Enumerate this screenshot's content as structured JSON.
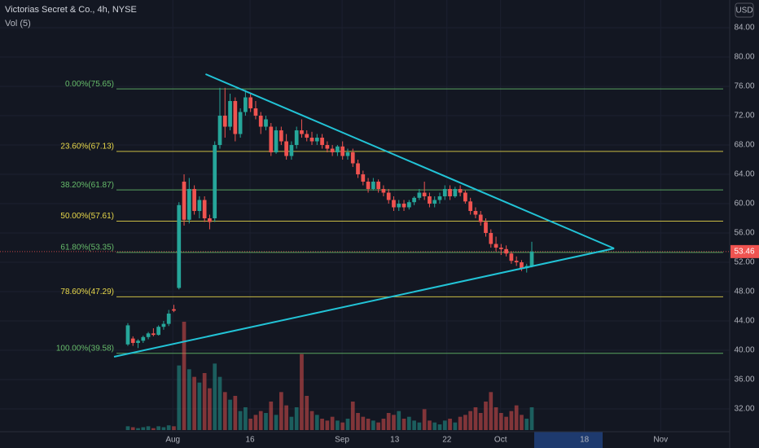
{
  "chart_data": {
    "type": "candlestick",
    "title": "Victorias Secret & Co., 4h, NYSE",
    "indicator": "Vol (5)",
    "currency": "USD",
    "last_price": 53.46,
    "up_color": "#26a69a",
    "down_color": "#ef5350",
    "ylim": [
      28.89,
      87.78
    ],
    "yticks": [
      {
        "value": 84,
        "label": "84.00"
      },
      {
        "value": 80,
        "label": "80.00"
      },
      {
        "value": 76,
        "label": "76.00"
      },
      {
        "value": 72,
        "label": "72.00"
      },
      {
        "value": 68,
        "label": "68.00"
      },
      {
        "value": 64,
        "label": "64.00"
      },
      {
        "value": 60,
        "label": "60.00"
      },
      {
        "value": 56,
        "label": "56.00"
      },
      {
        "value": 52,
        "label": "52.00"
      },
      {
        "value": 48,
        "label": "48.00"
      },
      {
        "value": 44,
        "label": "44.00"
      },
      {
        "value": 40,
        "label": "40.00"
      },
      {
        "value": 36,
        "label": "36.00"
      },
      {
        "value": 32,
        "label": "32.00"
      }
    ],
    "xlim": [
      -25.0,
      117.7
    ],
    "xticks": [
      {
        "value": 8.8,
        "label": "Aug"
      },
      {
        "value": 23.9,
        "label": "16"
      },
      {
        "value": 41.9,
        "label": "Sep"
      },
      {
        "value": 52.2,
        "label": "13"
      },
      {
        "value": 62.4,
        "label": "22"
      },
      {
        "value": 72.9,
        "label": "Oct"
      },
      {
        "value": 89.3,
        "label": "18"
      },
      {
        "value": 104.2,
        "label": "Nov"
      }
    ],
    "grid": true,
    "ohlc": [
      [
        40.8,
        43.7,
        40.6,
        43.4
      ],
      [
        41.6,
        41.9,
        40.6,
        41.0
      ],
      [
        41.0,
        41.5,
        40.3,
        41.3
      ],
      [
        41.3,
        42.0,
        41.0,
        41.8
      ],
      [
        41.8,
        42.5,
        41.5,
        42.3
      ],
      [
        42.3,
        43.0,
        41.9,
        42.1
      ],
      [
        42.1,
        43.4,
        42.0,
        43.2
      ],
      [
        43.2,
        44.0,
        42.8,
        43.6
      ],
      [
        43.6,
        45.5,
        43.3,
        45.0
      ],
      [
        45.6,
        46.2,
        45.2,
        45.4
      ],
      [
        48.5,
        60.2,
        48.3,
        59.8
      ],
      [
        63.0,
        64.0,
        57.0,
        57.8
      ],
      [
        57.8,
        63.5,
        57.3,
        62.0
      ],
      [
        62.0,
        62.5,
        58.5,
        59.0
      ],
      [
        59.0,
        61.0,
        58.0,
        60.5
      ],
      [
        60.5,
        61.0,
        57.5,
        58.0
      ],
      [
        58.0,
        58.5,
        56.5,
        57.5
      ],
      [
        58.0,
        68.5,
        57.5,
        68.0
      ],
      [
        68.0,
        75.8,
        67.5,
        72.0
      ],
      [
        72.0,
        75.8,
        69.0,
        70.5
      ],
      [
        70.5,
        75.0,
        70.0,
        74.0
      ],
      [
        74.0,
        74.5,
        68.5,
        69.5
      ],
      [
        69.5,
        73.0,
        69.0,
        72.5
      ],
      [
        72.5,
        75.5,
        72.0,
        74.5
      ],
      [
        74.5,
        75.0,
        72.5,
        73.0
      ],
      [
        73.0,
        74.0,
        71.5,
        72.0
      ],
      [
        72.0,
        72.5,
        69.5,
        70.5
      ],
      [
        70.5,
        72.0,
        70.0,
        71.5
      ],
      [
        70.5,
        71.0,
        66.5,
        67.0
      ],
      [
        67.0,
        70.5,
        66.8,
        70.0
      ],
      [
        70.0,
        70.5,
        68.0,
        68.5
      ],
      [
        68.5,
        69.5,
        66.0,
        66.5
      ],
      [
        66.5,
        68.5,
        66.0,
        68.0
      ],
      [
        68.0,
        70.5,
        67.5,
        70.0
      ],
      [
        70.0,
        71.5,
        69.0,
        69.5
      ],
      [
        69.5,
        70.0,
        68.5,
        69.0
      ],
      [
        69.0,
        69.8,
        68.0,
        68.5
      ],
      [
        68.5,
        69.5,
        68.0,
        69.0
      ],
      [
        69.0,
        69.5,
        67.5,
        68.0
      ],
      [
        68.0,
        68.5,
        67.0,
        67.5
      ],
      [
        67.5,
        68.0,
        66.5,
        67.0
      ],
      [
        67.0,
        68.0,
        66.5,
        67.8
      ],
      [
        67.8,
        68.5,
        66.0,
        66.5
      ],
      [
        66.5,
        67.5,
        66.0,
        67.0
      ],
      [
        67.0,
        67.5,
        65.0,
        65.5
      ],
      [
        65.5,
        66.0,
        63.5,
        64.0
      ],
      [
        64.0,
        64.5,
        62.5,
        63.0
      ],
      [
        63.0,
        63.5,
        61.5,
        62.0
      ],
      [
        62.0,
        63.5,
        61.8,
        63.0
      ],
      [
        63.0,
        63.3,
        61.5,
        62.0
      ],
      [
        62.0,
        62.5,
        61.0,
        61.5
      ],
      [
        61.5,
        62.0,
        60.0,
        60.5
      ],
      [
        60.5,
        61.0,
        59.0,
        59.5
      ],
      [
        59.5,
        60.5,
        59.0,
        60.0
      ],
      [
        60.0,
        60.5,
        59.0,
        59.5
      ],
      [
        59.5,
        60.5,
        59.2,
        60.2
      ],
      [
        60.2,
        61.0,
        59.8,
        60.8
      ],
      [
        60.8,
        62.0,
        60.5,
        61.5
      ],
      [
        61.5,
        63.0,
        60.5,
        61.0
      ],
      [
        61.0,
        61.5,
        59.5,
        60.0
      ],
      [
        60.0,
        61.0,
        59.5,
        60.5
      ],
      [
        60.5,
        61.5,
        60.0,
        61.0
      ],
      [
        61.0,
        62.5,
        60.5,
        62.0
      ],
      [
        62.0,
        62.5,
        60.5,
        61.0
      ],
      [
        61.0,
        62.3,
        60.8,
        62.0
      ],
      [
        62.0,
        62.5,
        61.0,
        61.5
      ],
      [
        61.5,
        61.8,
        60.0,
        60.3
      ],
      [
        60.3,
        60.8,
        58.5,
        59.0
      ],
      [
        59.0,
        59.5,
        58.0,
        58.5
      ],
      [
        58.5,
        59.0,
        57.0,
        57.5
      ],
      [
        57.5,
        58.0,
        55.5,
        56.0
      ],
      [
        56.0,
        56.5,
        54.0,
        54.5
      ],
      [
        54.5,
        55.5,
        53.5,
        54.0
      ],
      [
        54.0,
        54.5,
        53.0,
        53.8
      ],
      [
        53.8,
        54.3,
        52.8,
        53.2
      ],
      [
        53.2,
        53.5,
        51.8,
        52.2
      ],
      [
        52.2,
        52.8,
        51.5,
        52.0
      ],
      [
        52.0,
        52.3,
        50.8,
        51.2
      ],
      [
        51.2,
        51.8,
        50.6,
        51.5
      ],
      [
        51.5,
        54.8,
        51.3,
        53.46
      ]
    ],
    "volume": [
      0.2,
      0.15,
      0.1,
      0.15,
      0.2,
      0.1,
      0.2,
      0.15,
      0.25,
      0.2,
      3.4,
      5.7,
      3.2,
      2.8,
      2.5,
      3.0,
      2.2,
      3.5,
      2.8,
      2.0,
      1.6,
      1.8,
      1.0,
      1.2,
      0.6,
      0.8,
      1.0,
      0.9,
      1.5,
      0.8,
      2.0,
      1.3,
      0.7,
      1.2,
      4.0,
      1.8,
      1.0,
      0.8,
      0.6,
      0.5,
      0.7,
      0.5,
      0.4,
      0.6,
      1.5,
      0.9,
      0.7,
      0.6,
      0.5,
      0.4,
      0.6,
      0.9,
      0.8,
      1.0,
      0.6,
      0.7,
      0.5,
      0.4,
      1.1,
      0.5,
      0.4,
      0.3,
      0.5,
      0.6,
      0.4,
      0.7,
      0.8,
      1.0,
      1.2,
      0.9,
      1.5,
      2.0,
      1.2,
      0.9,
      0.7,
      1.0,
      1.3,
      0.8,
      0.6,
      1.2
    ],
    "volume_lim": [
      0,
      6
    ],
    "fib_levels": [
      {
        "label": "0.00%(75.65)",
        "value": 75.65,
        "color": "#66bb6a"
      },
      {
        "label": "23.60%(67.13)",
        "value": 67.13,
        "color": "#e8d84a"
      },
      {
        "label": "38.20%(61.87)",
        "value": 61.87,
        "color": "#66bb6a"
      },
      {
        "label": "50.00%(57.61)",
        "value": 57.61,
        "color": "#e8d84a"
      },
      {
        "label": "61.80%(53.35)",
        "value": 53.35,
        "color": "#66bb6a"
      },
      {
        "label": "78.60%(47.29)",
        "value": 47.29,
        "color": "#e8d84a"
      },
      {
        "label": "100.00%(39.58)",
        "value": 39.58,
        "color": "#66bb6a"
      }
    ],
    "trendlines": [
      {
        "x": [
          15.2,
          95.1
        ],
        "y": [
          77.67,
          53.89
        ],
        "color": "#22c3d6"
      },
      {
        "x": [
          -2.7,
          95.1
        ],
        "y": [
          39.11,
          53.89
        ],
        "color": "#22c3d6"
      }
    ]
  }
}
